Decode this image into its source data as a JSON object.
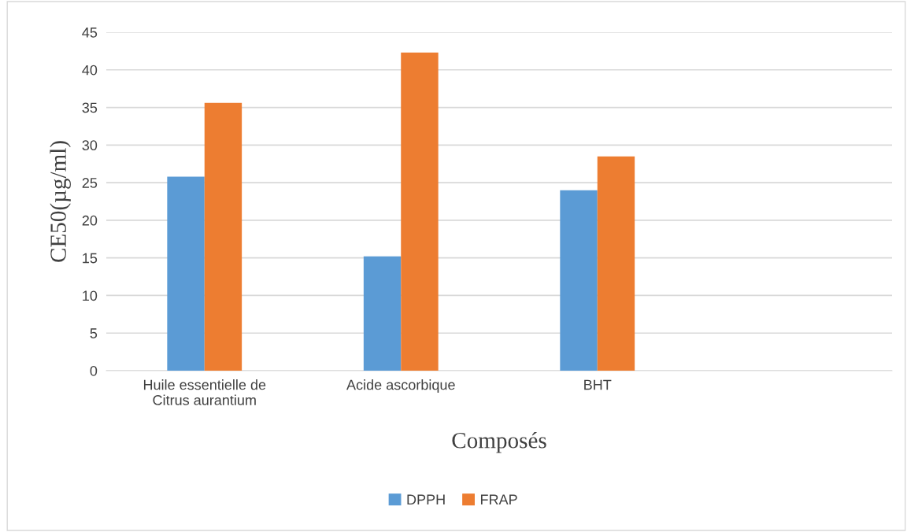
{
  "chart_data": {
    "type": "bar",
    "xlabel": "Composés",
    "ylabel": "CE50(µg/ml)",
    "categories": [
      "Huile essentielle de\nCitrus aurantium",
      "Acide ascorbique",
      "BHT",
      null
    ],
    "series": [
      {
        "name": "DPPH",
        "color": "#5b9bd5",
        "values": [
          25.8,
          15.2,
          24.0,
          null
        ]
      },
      {
        "name": "FRAP",
        "color": "#ed7d31",
        "values": [
          35.6,
          42.3,
          28.5,
          null
        ]
      }
    ],
    "ylim": [
      0,
      45
    ],
    "yticks": [
      0,
      5,
      10,
      15,
      20,
      25,
      30,
      35,
      40,
      45
    ],
    "grid": "y",
    "legend": "bottom"
  }
}
